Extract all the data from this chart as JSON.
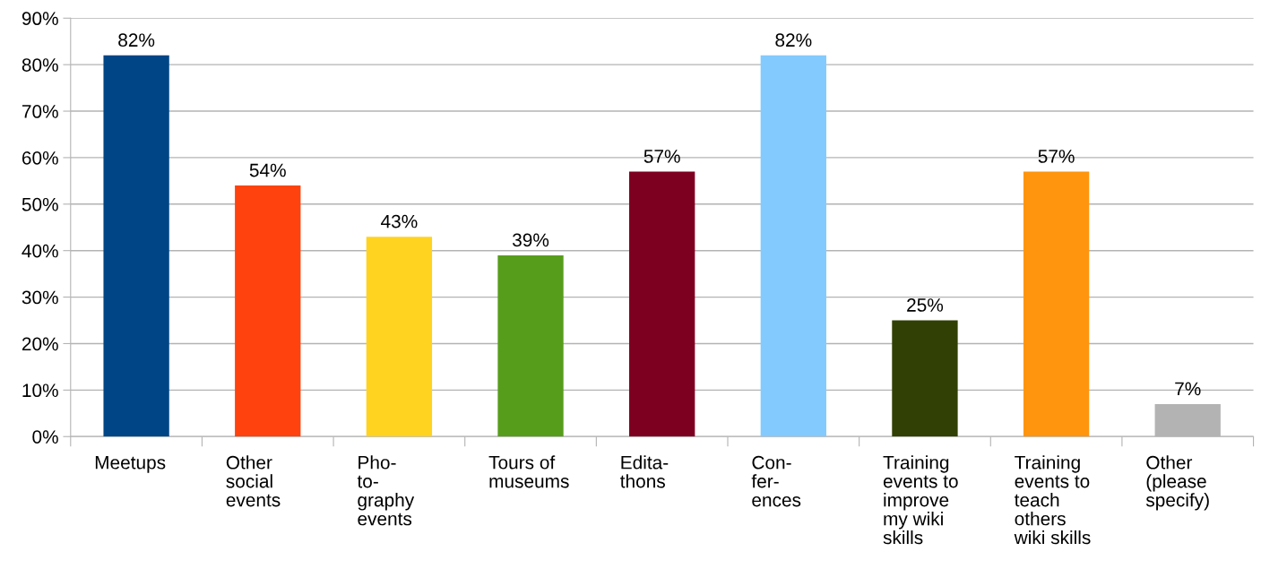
{
  "chart_data": {
    "type": "bar",
    "categories": [
      "Meetups",
      "Other\nsocial\nevents",
      "Pho-\nto-\ngraphy\nevents",
      "Tours of\nmuseums",
      "Edita-\nthons",
      "Con-\nfer-\nences",
      "Training\nevents to\nimprove\nmy wiki\nskills",
      "Training\nevents to\nteach\nothers\nwiki skills",
      "Other\n(please\nspecify)"
    ],
    "values": [
      82,
      54,
      43,
      39,
      57,
      82,
      25,
      57,
      7
    ],
    "value_labels": [
      "82%",
      "54%",
      "43%",
      "39%",
      "57%",
      "82%",
      "25%",
      "57%",
      "7%"
    ],
    "colors": [
      "#004586",
      "#ff420e",
      "#ffd320",
      "#579d1c",
      "#7e0021",
      "#83caff",
      "#314004",
      "#ff950e",
      "#b3b3b3"
    ],
    "ylim": [
      0,
      90
    ],
    "yticks": [
      {
        "value": 0,
        "label": "0%"
      },
      {
        "value": 10,
        "label": "10%"
      },
      {
        "value": 20,
        "label": "20%"
      },
      {
        "value": 30,
        "label": "30%"
      },
      {
        "value": 40,
        "label": "40%"
      },
      {
        "value": 50,
        "label": "50%"
      },
      {
        "value": 60,
        "label": "60%"
      },
      {
        "value": 70,
        "label": "70%"
      },
      {
        "value": 80,
        "label": "80%"
      },
      {
        "value": 90,
        "label": "90%"
      }
    ],
    "grid": "y",
    "legend": false
  }
}
